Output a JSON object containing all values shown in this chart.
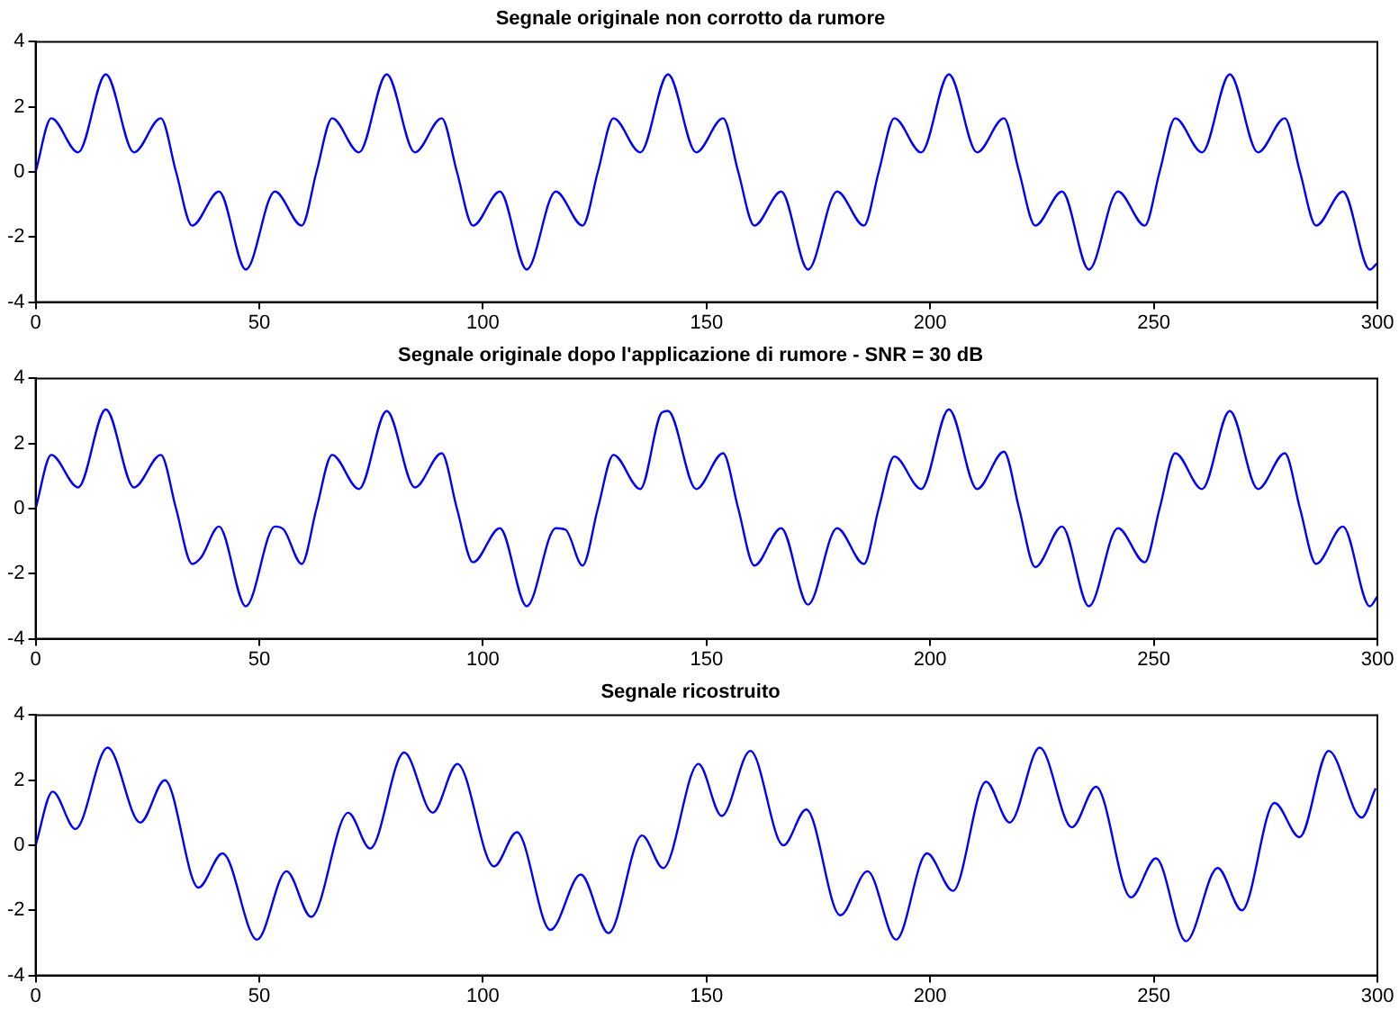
{
  "chart_data": [
    {
      "type": "line",
      "title": "Segnale originale non corrotto da rumore",
      "xlim": [
        0,
        300
      ],
      "xticks": [
        0,
        50,
        100,
        150,
        200,
        250,
        300
      ],
      "ylim": [
        -4,
        4
      ],
      "yticks": [
        -4,
        -2,
        0,
        2,
        4
      ],
      "grid": false,
      "series": [
        {
          "color": "#0000ff",
          "x": [
            0,
            3.5,
            9.5,
            15.7,
            22,
            28,
            31.4,
            35,
            41,
            47,
            53.5,
            59.5,
            62.8,
            66.3,
            72.3,
            78.5,
            84.8,
            90.8,
            94.2,
            97.8,
            103.8,
            109.8,
            116.3,
            122.3,
            125.7,
            129.2,
            135.2,
            141.4,
            147.7,
            153.7,
            157.1,
            160.7,
            166.7,
            172.7,
            179.2,
            185.2,
            188.5,
            192,
            198,
            204.2,
            210.5,
            216.5,
            219.9,
            223.5,
            229.5,
            235.5,
            242,
            248,
            251.3,
            254.8,
            260.8,
            267,
            273.3,
            279.3,
            282.7,
            286.3,
            292.3,
            298.3,
            300
          ],
          "values": [
            0,
            1.65,
            0.6,
            3.0,
            0.6,
            1.65,
            0,
            -1.65,
            -0.6,
            -3.0,
            -0.6,
            -1.65,
            0,
            1.65,
            0.6,
            3.0,
            0.6,
            1.65,
            0,
            -1.65,
            -0.6,
            -3.0,
            -0.6,
            -1.65,
            0,
            1.65,
            0.6,
            3.0,
            0.6,
            1.65,
            0,
            -1.65,
            -0.6,
            -3.0,
            -0.6,
            -1.65,
            0,
            1.65,
            0.6,
            3.0,
            0.6,
            1.65,
            0,
            -1.65,
            -0.6,
            -3.0,
            -0.6,
            -1.65,
            0,
            1.65,
            0.6,
            3.0,
            0.6,
            1.65,
            0,
            -1.65,
            -0.6,
            -3.0,
            -2.8
          ]
        }
      ]
    },
    {
      "type": "line",
      "title": "Segnale originale dopo l'applicazione di rumore - SNR = 30 dB",
      "xlim": [
        0,
        300
      ],
      "xticks": [
        0,
        50,
        100,
        150,
        200,
        250,
        300
      ],
      "ylim": [
        -4,
        4
      ],
      "yticks": [
        -4,
        -2,
        0,
        2,
        4
      ],
      "grid": false,
      "series": [
        {
          "color": "#0000ff",
          "x": [
            0,
            3.5,
            9.5,
            15.7,
            22,
            28,
            31.4,
            35,
            37,
            41,
            47,
            53.5,
            55.5,
            59.5,
            62.8,
            66.3,
            72.3,
            78.5,
            84.8,
            90.8,
            94.2,
            97.8,
            103.8,
            109.8,
            116.3,
            118.5,
            122.3,
            125.7,
            129.2,
            135.2,
            140,
            141.4,
            147.7,
            153.7,
            157.1,
            160.7,
            166.7,
            172.7,
            179.2,
            185.2,
            188.5,
            192,
            198,
            204.2,
            210.5,
            216.5,
            219.9,
            223.5,
            229.5,
            235.5,
            242,
            248,
            251.3,
            254.8,
            260.8,
            267,
            273.3,
            279.3,
            282.7,
            286.3,
            292.3,
            298.3,
            300
          ],
          "values": [
            0,
            1.65,
            0.65,
            3.05,
            0.65,
            1.65,
            0,
            -1.7,
            -1.5,
            -0.55,
            -3.0,
            -0.55,
            -0.65,
            -1.7,
            0,
            1.65,
            0.6,
            3.0,
            0.65,
            1.7,
            0,
            -1.65,
            -0.6,
            -3.0,
            -0.6,
            -0.65,
            -1.75,
            0,
            1.65,
            0.6,
            2.95,
            3.0,
            0.6,
            1.7,
            0,
            -1.75,
            -0.6,
            -2.95,
            -0.6,
            -1.7,
            0,
            1.6,
            0.6,
            3.05,
            0.6,
            1.75,
            0,
            -1.8,
            -0.55,
            -3.0,
            -0.6,
            -1.65,
            0,
            1.7,
            0.6,
            3.0,
            0.6,
            1.7,
            0,
            -1.7,
            -0.55,
            -3.0,
            -2.7
          ]
        }
      ]
    },
    {
      "type": "line",
      "title": "Segnale ricostruito",
      "xlim": [
        0,
        300
      ],
      "xticks": [
        0,
        50,
        100,
        150,
        200,
        250,
        300
      ],
      "ylim": [
        -4,
        4
      ],
      "yticks": [
        -4,
        -2,
        0,
        2,
        4
      ],
      "grid": false,
      "series": [
        {
          "color": "#0000ff",
          "x": [
            0,
            3.8,
            8.9,
            16.1,
            23.4,
            28.9,
            36.4,
            41.8,
            49.5,
            56.1,
            61.6,
            69.9,
            74.8,
            82.4,
            88.8,
            94.3,
            102.5,
            107.6,
            115.1,
            121.9,
            128.1,
            135.6,
            140.3,
            148.2,
            153.4,
            159.8,
            167.2,
            172.3,
            179.9,
            186,
            192.4,
            199.3,
            205.1,
            212.5,
            217.8,
            224.5,
            231.7,
            237.1,
            244.9,
            250.5,
            257.2,
            264.3,
            269.7,
            277,
            282.6,
            289.1,
            296.5,
            299.6
          ],
          "values": [
            0,
            1.65,
            0.5,
            3.0,
            0.7,
            2.0,
            -1.3,
            -0.25,
            -2.9,
            -0.8,
            -2.2,
            1.0,
            -0.1,
            2.85,
            1.0,
            2.5,
            -0.65,
            0.4,
            -2.6,
            -0.9,
            -2.7,
            0.3,
            -0.7,
            2.5,
            0.9,
            2.9,
            0.0,
            1.1,
            -2.15,
            -0.8,
            -2.9,
            -0.25,
            -1.4,
            1.95,
            0.7,
            3.0,
            0.55,
            1.8,
            -1.6,
            -0.4,
            -2.95,
            -0.7,
            -2.0,
            1.3,
            0.25,
            2.9,
            0.85,
            1.75
          ]
        }
      ]
    }
  ]
}
